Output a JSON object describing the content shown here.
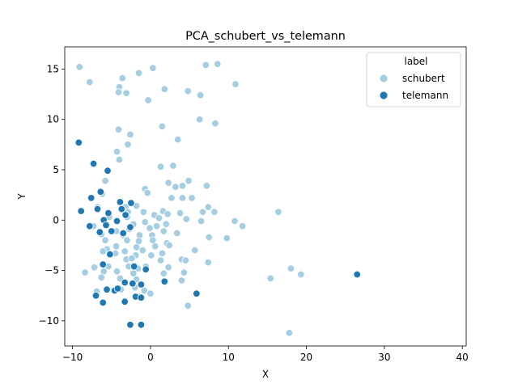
{
  "chart_data": {
    "type": "scatter",
    "title": "PCA_schubert_vs_telemann",
    "xlabel": "X",
    "ylabel": "Y",
    "xlim": [
      -11,
      40.5
    ],
    "ylim": [
      -12.5,
      17.2
    ],
    "xticks": [
      -10,
      0,
      10,
      20,
      30,
      40
    ],
    "yticks": [
      -10,
      -5,
      0,
      5,
      10,
      15
    ],
    "grid": false,
    "legend": {
      "title": "label",
      "placement": "top-right"
    },
    "series": [
      {
        "name": "schubert",
        "color": "#a6cee3",
        "points": [
          [
            -9.1,
            15.2
          ],
          [
            -7.8,
            13.7
          ],
          [
            -3.6,
            14.1
          ],
          [
            -1.5,
            14.6
          ],
          [
            0.3,
            15.1
          ],
          [
            7.1,
            15.4
          ],
          [
            8.6,
            15.5
          ],
          [
            -4.0,
            13.2
          ],
          [
            -4.1,
            12.7
          ],
          [
            -3.1,
            12.6
          ],
          [
            1.8,
            13.0
          ],
          [
            4.8,
            12.8
          ],
          [
            6.4,
            12.4
          ],
          [
            10.9,
            13.5
          ],
          [
            -0.3,
            11.9
          ],
          [
            -4.1,
            9.0
          ],
          [
            -2.6,
            8.5
          ],
          [
            1.5,
            9.3
          ],
          [
            6.3,
            10.0
          ],
          [
            8.3,
            9.6
          ],
          [
            -2.9,
            7.5
          ],
          [
            3.5,
            8.0
          ],
          [
            -4.3,
            6.8
          ],
          [
            -4.0,
            6.0
          ],
          [
            1.3,
            5.3
          ],
          [
            2.9,
            5.4
          ],
          [
            4.9,
            3.9
          ],
          [
            -5.8,
            3.9
          ],
          [
            2.3,
            3.7
          ],
          [
            3.2,
            3.3
          ],
          [
            4.1,
            3.4
          ],
          [
            7.2,
            3.4
          ],
          [
            -0.7,
            3.1
          ],
          [
            -0.4,
            2.7
          ],
          [
            -6.2,
            2.6
          ],
          [
            2.7,
            2.2
          ],
          [
            4.1,
            2.2
          ],
          [
            5.3,
            2.2
          ],
          [
            7.4,
            1.3
          ],
          [
            -6.8,
            1.3
          ],
          [
            -3.2,
            1.3
          ],
          [
            -1.8,
            1.4
          ],
          [
            8.2,
            0.8
          ],
          [
            16.4,
            0.8
          ],
          [
            -2.9,
            0.8
          ],
          [
            -0.9,
            0.8
          ],
          [
            1.6,
            0.9
          ],
          [
            2.2,
            0.6
          ],
          [
            3.8,
            0.7
          ],
          [
            6.7,
            0.8
          ],
          [
            -5.3,
            0.3
          ],
          [
            -3.0,
            0.3
          ],
          [
            0.5,
            0.5
          ],
          [
            1.1,
            0.2
          ],
          [
            4.6,
            0.1
          ],
          [
            6.5,
            -0.1
          ],
          [
            10.8,
            -0.1
          ],
          [
            -7.3,
            -0.6
          ],
          [
            -2.2,
            -0.4
          ],
          [
            -0.7,
            -0.2
          ],
          [
            0.8,
            -0.6
          ],
          [
            2.0,
            -0.4
          ],
          [
            11.8,
            -0.6
          ],
          [
            -4.4,
            -1.1
          ],
          [
            -2.7,
            -0.9
          ],
          [
            -0.1,
            -0.8
          ],
          [
            1.7,
            -1.1
          ],
          [
            3.4,
            -1.3
          ],
          [
            -6.3,
            -1.4
          ],
          [
            -3.5,
            -1.5
          ],
          [
            -1.4,
            -1.5
          ],
          [
            0.2,
            -1.5
          ],
          [
            7.5,
            -1.7
          ],
          [
            9.8,
            -1.8
          ],
          [
            -5.8,
            -2.0
          ],
          [
            -3.0,
            -2.0
          ],
          [
            -1.5,
            -2.1
          ],
          [
            0.3,
            -2.0
          ],
          [
            2.1,
            -2.3
          ],
          [
            -4.4,
            -2.6
          ],
          [
            -1.8,
            -2.7
          ],
          [
            0.6,
            -2.6
          ],
          [
            2.4,
            -2.5
          ],
          [
            -5.6,
            -2.9
          ],
          [
            -6.1,
            -3.1
          ],
          [
            -3.3,
            -3.1
          ],
          [
            -1.0,
            -3.0
          ],
          [
            1.5,
            -3.3
          ],
          [
            5.7,
            -3.0
          ],
          [
            -4.5,
            -3.3
          ],
          [
            -1.9,
            -3.5
          ],
          [
            0.1,
            -3.5
          ],
          [
            -3.1,
            -3.9
          ],
          [
            -2.4,
            -3.8
          ],
          [
            1.3,
            -4.0
          ],
          [
            4.0,
            -3.9
          ],
          [
            4.5,
            -4.0
          ],
          [
            7.4,
            -4.2
          ],
          [
            -7.2,
            -4.7
          ],
          [
            -5.4,
            -4.6
          ],
          [
            -2.8,
            -4.6
          ],
          [
            -1.6,
            -4.8
          ],
          [
            -0.6,
            -4.6
          ],
          [
            2.3,
            -4.7
          ],
          [
            18.0,
            -4.8
          ],
          [
            -8.4,
            -5.2
          ],
          [
            -6.0,
            -5.1
          ],
          [
            -4.3,
            -5.1
          ],
          [
            -2.2,
            -5.3
          ],
          [
            1.7,
            -5.3
          ],
          [
            4.3,
            -5.2
          ],
          [
            19.3,
            -5.4
          ],
          [
            15.4,
            -5.8
          ],
          [
            -6.3,
            -5.7
          ],
          [
            -3.9,
            -5.8
          ],
          [
            -1.8,
            -5.9
          ],
          [
            4.0,
            -6.0
          ],
          [
            -2.0,
            -6.7
          ],
          [
            -3.8,
            -6.9
          ],
          [
            -0.8,
            -7.0
          ],
          [
            0.0,
            -7.3
          ],
          [
            -6.9,
            -7.1
          ],
          [
            -1.5,
            -7.6
          ],
          [
            4.8,
            -8.5
          ],
          [
            17.8,
            -11.2
          ]
        ]
      },
      {
        "name": "telemann",
        "color": "#1f78b4",
        "points": [
          [
            -9.2,
            7.7
          ],
          [
            -7.3,
            5.6
          ],
          [
            -5.5,
            4.9
          ],
          [
            -6.4,
            2.8
          ],
          [
            -7.6,
            2.2
          ],
          [
            -3.9,
            1.8
          ],
          [
            -2.5,
            1.7
          ],
          [
            -3.7,
            1.1
          ],
          [
            -8.9,
            0.9
          ],
          [
            -6.8,
            1.1
          ],
          [
            -5.4,
            0.7
          ],
          [
            -3.2,
            0.5
          ],
          [
            -6.0,
            0.0
          ],
          [
            -4.3,
            -0.1
          ],
          [
            -7.8,
            -0.6
          ],
          [
            -5.7,
            -0.5
          ],
          [
            -2.6,
            -0.7
          ],
          [
            -6.5,
            -1.2
          ],
          [
            -5.0,
            -1.1
          ],
          [
            -3.5,
            -1.3
          ],
          [
            -5.2,
            -3.4
          ],
          [
            -6.1,
            -4.4
          ],
          [
            -2.1,
            -4.6
          ],
          [
            -0.6,
            -4.9
          ],
          [
            -3.3,
            -6.2
          ],
          [
            -2.3,
            -6.3
          ],
          [
            -1.2,
            -6.4
          ],
          [
            1.8,
            -6.1
          ],
          [
            -4.6,
            -7.0
          ],
          [
            -4.2,
            -6.8
          ],
          [
            -5.6,
            -6.9
          ],
          [
            -7.0,
            -7.5
          ],
          [
            5.9,
            -7.3
          ],
          [
            -1.9,
            -7.6
          ],
          [
            -1.2,
            -7.7
          ],
          [
            -6.1,
            -8.2
          ],
          [
            -3.3,
            -8.1
          ],
          [
            -2.6,
            -10.4
          ],
          [
            -1.2,
            -10.4
          ],
          [
            26.5,
            -5.4
          ]
        ]
      }
    ]
  }
}
